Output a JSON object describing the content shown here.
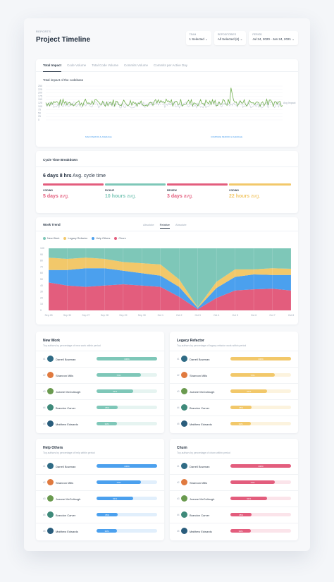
{
  "header": {
    "crumb": "REPORTS",
    "title": "Project Timeline",
    "filters": [
      {
        "label": "TEAM",
        "value": "1 Selected"
      },
      {
        "label": "REPOSITORIES",
        "value": "All Selected (6)"
      },
      {
        "label": "PERIOD",
        "value": "Jul 24, 2020 - Jan 24, 2021"
      }
    ]
  },
  "impact": {
    "tabs": [
      "Total Impact",
      "Code Volume",
      "Total Code Volume",
      "Commits Volume",
      "Commits per Active Day"
    ],
    "chart_title": "Total impact of the codebase",
    "legend_left": "MAIN PERIOD & AVERAGE",
    "legend_right": "COMPARE PERIOD & AVERAGE",
    "avg_label": "Avg Impact",
    "y_ticks": [
      "250",
      "225",
      "200",
      "175",
      "150",
      "125",
      "100",
      "75",
      "50",
      "25",
      "0"
    ]
  },
  "cycle": {
    "title": "Cycle Time Breakdown",
    "headline_value": "6 days 8 hrs",
    "headline_suffix": "Avg. cycle time",
    "phases": [
      {
        "label": "CODING",
        "value": "5 days",
        "unit": "avg.",
        "color": "#e35d7d"
      },
      {
        "label": "PICKUP",
        "value": "10 hours",
        "unit": "avg.",
        "color": "#7ec7b8"
      },
      {
        "label": "REVIEW",
        "value": "3 days",
        "unit": "avg.",
        "color": "#e35d7d"
      },
      {
        "label": "CODING",
        "value": "22 hours",
        "unit": "avg.",
        "color": "#f2c86a"
      }
    ]
  },
  "trend": {
    "title": "Work Trend",
    "modes": [
      "Absolute",
      "Relative",
      "Absolute"
    ],
    "active_mode": 1,
    "y_ticks": [
      "100",
      "90",
      "80",
      "70",
      "60",
      "50",
      "40",
      "30",
      "20",
      "10",
      "0"
    ],
    "x_ticks": [
      "Sep 28",
      "Sep 30",
      "Sep 27",
      "Sep 28",
      "Sep 29",
      "Sep 30",
      "Oct 1",
      "Oct 2",
      "Oct 3",
      "Oct 4",
      "Oct 5",
      "Oct 6",
      "Oct 7",
      "Oct 8"
    ]
  },
  "chart_data": {
    "type": "area",
    "stacked": true,
    "x": [
      "Sep 28",
      "Sep 30",
      "Sep 27",
      "Sep 28",
      "Sep 29",
      "Sep 30",
      "Oct 1",
      "Oct 2",
      "Oct 3",
      "Oct 4",
      "Oct 5",
      "Oct 6",
      "Oct 7",
      "Oct 8"
    ],
    "ylim": [
      0,
      100
    ],
    "series": [
      {
        "name": "Churn",
        "color": "#e35d7d",
        "values": [
          45,
          40,
          38,
          40,
          42,
          40,
          38,
          22,
          2,
          20,
          32,
          34,
          35,
          32
        ]
      },
      {
        "name": "Help Others",
        "color": "#4ba0ee",
        "values": [
          20,
          25,
          30,
          28,
          22,
          20,
          18,
          16,
          2,
          16,
          22,
          24,
          22,
          25
        ]
      },
      {
        "name": "Legacy Refactor",
        "color": "#f2c86a",
        "values": [
          20,
          18,
          17,
          15,
          14,
          16,
          18,
          12,
          1,
          10,
          12,
          8,
          11,
          10
        ]
      },
      {
        "name": "New Work",
        "color": "#7ec7b8",
        "values": [
          15,
          17,
          15,
          17,
          22,
          24,
          26,
          50,
          95,
          54,
          34,
          34,
          32,
          33
        ]
      }
    ]
  },
  "lists": [
    {
      "title": "New Work",
      "subtitle": "Top authors by percentage of new work within period",
      "color": "#7ec7b8",
      "track": "#e6f4f1",
      "rows": [
        {
          "rank": "#1",
          "name": "Darrell Bowman",
          "pct": "100%",
          "value": 100,
          "avatar": "#2f6b85"
        },
        {
          "rank": "#2",
          "name": "Shannon Mills",
          "pct": "73%",
          "value": 73,
          "avatar": "#e07a3f"
        },
        {
          "rank": "#3",
          "name": "Joanne McCullough",
          "pct": "61%",
          "value": 61,
          "avatar": "#6a9a4f"
        },
        {
          "rank": "#4",
          "name": "Brandon Carver",
          "pct": "35%",
          "value": 35,
          "avatar": "#3f8a7a"
        },
        {
          "rank": "#5",
          "name": "Matthew Edwards",
          "pct": "34%",
          "value": 34,
          "avatar": "#2a5d7c"
        }
      ]
    },
    {
      "title": "Legacy Refactor",
      "subtitle": "Top authors by percentage of legacy refactor work within period",
      "color": "#f2c86a",
      "track": "#fcf3de",
      "rows": [
        {
          "rank": "#1",
          "name": "Darrell Bowman",
          "pct": "100%",
          "value": 100,
          "avatar": "#2f6b85"
        },
        {
          "rank": "#2",
          "name": "Shannon Mills",
          "pct": "73%",
          "value": 73,
          "avatar": "#e07a3f"
        },
        {
          "rank": "#3",
          "name": "Joanne McCullough",
          "pct": "61%",
          "value": 61,
          "avatar": "#6a9a4f"
        },
        {
          "rank": "#4",
          "name": "Brandon Carver",
          "pct": "35%",
          "value": 35,
          "avatar": "#3f8a7a"
        },
        {
          "rank": "#5",
          "name": "Matthew Edwards",
          "pct": "34%",
          "value": 34,
          "avatar": "#2a5d7c"
        }
      ]
    },
    {
      "title": "Help Others",
      "subtitle": "Top authors by percentage of help within period",
      "color": "#4ba0ee",
      "track": "#e1effc",
      "rows": [
        {
          "rank": "#1",
          "name": "Darrell Bowman",
          "pct": "100%",
          "value": 100,
          "avatar": "#2f6b85"
        },
        {
          "rank": "#2",
          "name": "Shannon Mills",
          "pct": "73%",
          "value": 73,
          "avatar": "#e07a3f"
        },
        {
          "rank": "#3",
          "name": "Joanne McCullough",
          "pct": "61%",
          "value": 61,
          "avatar": "#6a9a4f"
        },
        {
          "rank": "#4",
          "name": "Brandon Carver",
          "pct": "35%",
          "value": 35,
          "avatar": "#3f8a7a"
        },
        {
          "rank": "#5",
          "name": "Matthew Edwards",
          "pct": "34%",
          "value": 34,
          "avatar": "#2a5d7c"
        }
      ]
    },
    {
      "title": "Churn",
      "subtitle": "Top authors by percentage of churn within period",
      "color": "#e35d7d",
      "track": "#fbe4ea",
      "rows": [
        {
          "rank": "#1",
          "name": "Darrell Bowman",
          "pct": "100%",
          "value": 100,
          "avatar": "#2f6b85"
        },
        {
          "rank": "#2",
          "name": "Shannon Mills",
          "pct": "73%",
          "value": 73,
          "avatar": "#e07a3f"
        },
        {
          "rank": "#3",
          "name": "Joanne McCullough",
          "pct": "61%",
          "value": 61,
          "avatar": "#6a9a4f"
        },
        {
          "rank": "#4",
          "name": "Brandon Carver",
          "pct": "35%",
          "value": 35,
          "avatar": "#3f8a7a"
        },
        {
          "rank": "#5",
          "name": "Matthew Edwards",
          "pct": "34%",
          "value": 34,
          "avatar": "#2a5d7c"
        }
      ]
    }
  ]
}
